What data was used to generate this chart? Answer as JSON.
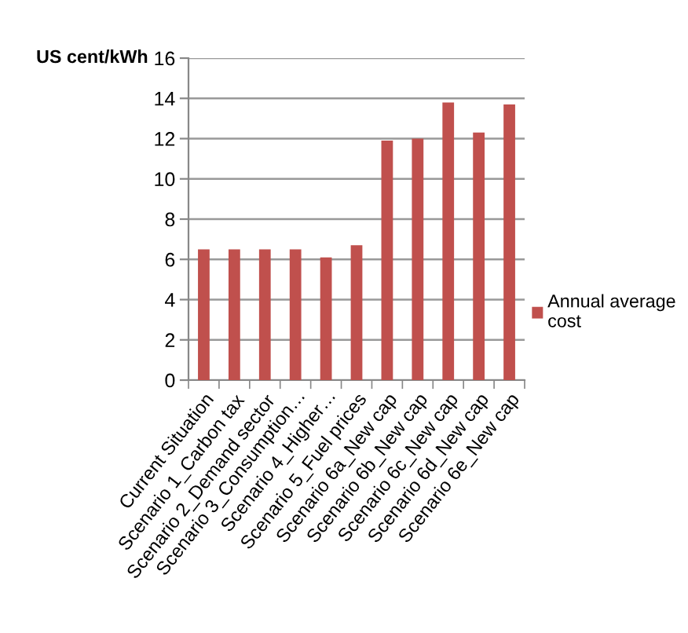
{
  "chart_data": {
    "type": "bar",
    "ylabel": "US cent/kWh",
    "categories": [
      "Current Situation",
      "Scenario 1_Carbon tax",
      "Scenario 2_Demand sector",
      "Scenario 3_Consumption…",
      "Scenario 4_Higher…",
      "Scenario 5_Fuel prices",
      "Scenario 6a_New cap",
      "Scenario 6b_New cap",
      "Scenario 6c_New cap",
      "Scenario 6d_New cap",
      "Scenario 6e_New cap"
    ],
    "series": [
      {
        "name": "Annual average cost",
        "color": "#c0504d",
        "values": [
          6.5,
          6.5,
          6.5,
          6.5,
          6.1,
          6.7,
          11.9,
          12.0,
          13.8,
          12.3,
          13.7
        ]
      }
    ],
    "ylim": [
      0,
      16
    ],
    "yticks": [
      0,
      2,
      4,
      6,
      8,
      10,
      12,
      14,
      16
    ],
    "grid": "y",
    "legend": "right"
  }
}
